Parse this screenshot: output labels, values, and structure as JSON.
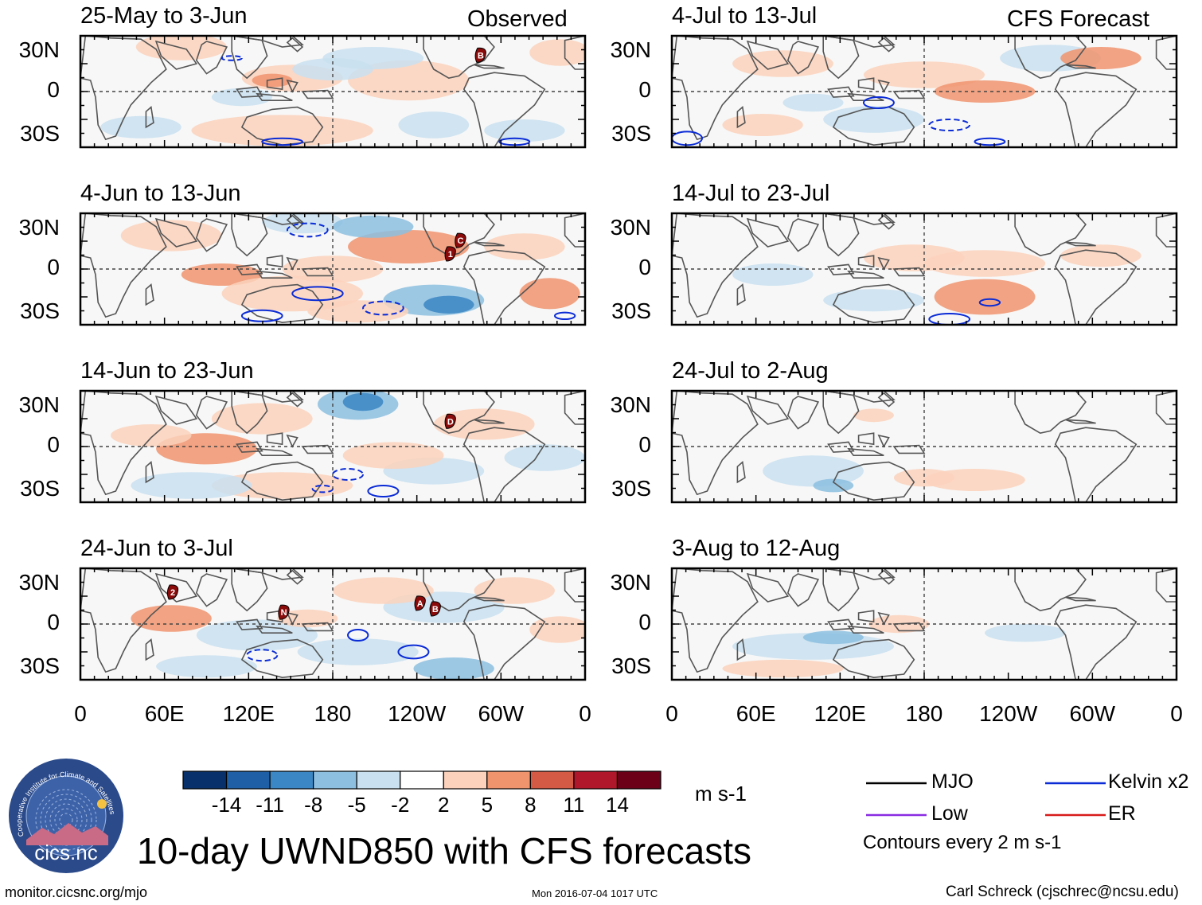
{
  "title": "10-day UWND850 with CFS forecasts",
  "header": {
    "observed_label": "Observed",
    "forecast_label": "CFS Forecast"
  },
  "panels": {
    "observed": [
      {
        "period": "25-May to 3-Jun",
        "storms": [
          "B"
        ]
      },
      {
        "period": "4-Jun to 13-Jun",
        "storms": [
          "1",
          "C"
        ]
      },
      {
        "period": "14-Jun to 23-Jun",
        "storms": [
          "D"
        ]
      },
      {
        "period": "24-Jun to 3-Jul",
        "storms": [
          "2",
          "N",
          "A",
          "B"
        ]
      }
    ],
    "forecast": [
      {
        "period": "4-Jul to 13-Jul"
      },
      {
        "period": "14-Jul to 23-Jul"
      },
      {
        "period": "24-Jul to 2-Aug"
      },
      {
        "period": "3-Aug to 12-Aug"
      }
    ]
  },
  "axes": {
    "lat_labels": [
      "30N",
      "0",
      "30S"
    ],
    "lon_labels": [
      "0",
      "60E",
      "120E",
      "180",
      "120W",
      "60W",
      "0"
    ]
  },
  "colorbar": {
    "units": "m s-1",
    "ticks": [
      "-14",
      "-11",
      "-8",
      "-5",
      "-2",
      "2",
      "5",
      "8",
      "11",
      "14"
    ],
    "colors": [
      "#08306b",
      "#1f5fa6",
      "#3b86c4",
      "#8cbfe0",
      "#c9e0f0",
      "#ffffff",
      "#fcd2bc",
      "#f0946e",
      "#d55a45",
      "#b0172a",
      "#6b0018"
    ]
  },
  "legend": {
    "items": [
      {
        "label": "MJO",
        "color": "#000000"
      },
      {
        "label": "Kelvin x2",
        "color": "#0a2bd6"
      },
      {
        "label": "Low",
        "color": "#8a2be2"
      },
      {
        "label": "ER",
        "color": "#d81b1b"
      }
    ],
    "contour_note": "Contours every 2 m s-1"
  },
  "footer": {
    "website": "monitor.cicsnc.org/mjo",
    "timestamp": "Mon 2016-07-04 1017 UTC",
    "author": "Carl Schreck (cjschrec@ncsu.edu)"
  },
  "logo": {
    "text": "cics.nc",
    "ring_text": "Cooperative Institute for Climate and Satellites"
  }
}
